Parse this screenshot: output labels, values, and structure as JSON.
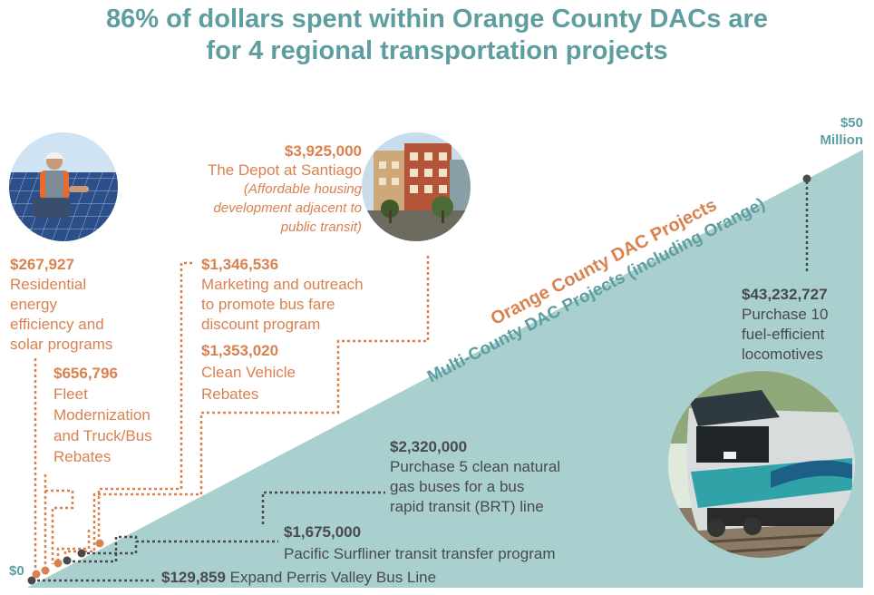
{
  "title": {
    "line1": "86% of dollars spent within Orange County DACs are",
    "line2": "for 4 regional transportation projects"
  },
  "axis": {
    "zero": "$0",
    "max_line1": "$50",
    "max_line2": "Million"
  },
  "wedge_labels": {
    "orange_county": "Orange County DAC Projects",
    "multi_county": "Multi-County DAC Projects (including Orange)"
  },
  "colors": {
    "orange": "#d9814f",
    "teal": "#5e9ea0",
    "teal_fill": "#a9cfcf",
    "gray": "#4a4a4a"
  },
  "orange_projects": {
    "residential": {
      "amount": "$267,927",
      "lines": [
        "Residential",
        "energy",
        "efficiency and",
        "solar programs"
      ]
    },
    "fleet": {
      "amount": "$656,796",
      "lines": [
        "Fleet",
        "Modernization",
        "and Truck/Bus",
        "Rebates"
      ]
    },
    "marketing": {
      "amount": "$1,346,536",
      "lines": [
        "Marketing and outreach",
        "to promote bus fare",
        "discount program"
      ]
    },
    "clean_vehicle": {
      "amount": "$1,353,020",
      "lines": [
        "Clean Vehicle",
        "Rebates"
      ]
    },
    "depot": {
      "amount": "$3,925,000",
      "name": "The Depot at Santiago",
      "note_lines": [
        "(Affordable housing",
        "development adjacent to",
        "public transit)"
      ]
    }
  },
  "multi_projects": {
    "perris": {
      "amount": "$129,859",
      "label": "Expand Perris Valley Bus Line"
    },
    "surfliner": {
      "amount": "$1,675,000",
      "label": "Pacific Surfliner transit transfer program"
    },
    "brt": {
      "amount": "$2,320,000",
      "lines": [
        "Purchase 5 clean natural",
        "gas buses for a bus",
        "rapid transit (BRT) line"
      ]
    },
    "locomotives": {
      "amount": "$43,232,727",
      "lines": [
        "Purchase 10",
        "fuel-efficient",
        "locomotives"
      ]
    }
  },
  "images": {
    "worker": "solar-worker-photo",
    "depot": "depot-building-photo",
    "train": "locomotive-photo"
  }
}
